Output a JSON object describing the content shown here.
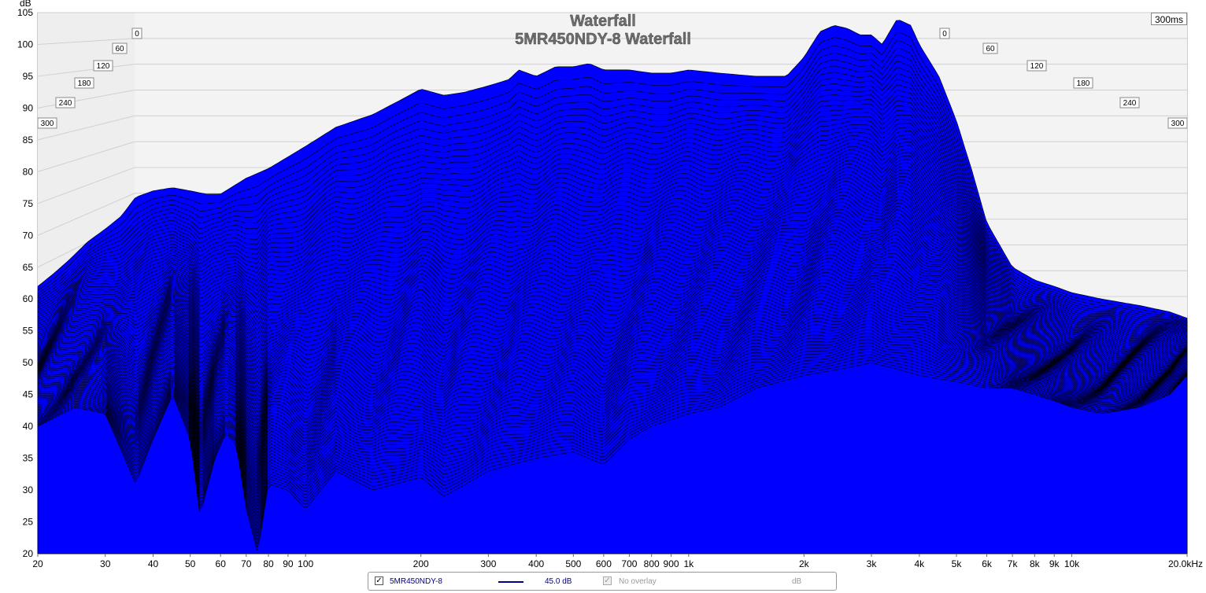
{
  "window": {
    "title": "Waterfall",
    "subtitle": "5MR450NDY-8 Waterfall",
    "time_range_label": "300ms"
  },
  "legend": {
    "series_name": "5MR450NDY-8",
    "series_checked": true,
    "series_level": "45.0 dB",
    "series_color": "#000080",
    "overlay_label": "No overlay",
    "overlay_checked": true,
    "overlay_unit": "dB"
  },
  "colors": {
    "surface": "#0000ff",
    "edge": "#000000",
    "grid": "#d0d0d0",
    "wall": "#eeeeee"
  },
  "chart_data": {
    "type": "area",
    "title": "Waterfall",
    "subtitle": "5MR450NDY-8 Waterfall",
    "ylabel": "dB",
    "xlabel": "",
    "x_scale": "log",
    "xlim": [
      20,
      20000
    ],
    "ylim": [
      20,
      105
    ],
    "y_ticks": [
      105,
      100,
      95,
      90,
      85,
      80,
      75,
      70,
      65,
      60,
      55,
      50,
      45,
      40,
      35,
      30,
      25,
      20
    ],
    "x_ticks": [
      {
        "value": 20,
        "label": "20"
      },
      {
        "value": 30,
        "label": "30"
      },
      {
        "value": 40,
        "label": "40"
      },
      {
        "value": 50,
        "label": "50"
      },
      {
        "value": 60,
        "label": "60"
      },
      {
        "value": 70,
        "label": "70"
      },
      {
        "value": 80,
        "label": "80"
      },
      {
        "value": 90,
        "label": "90"
      },
      {
        "value": 100,
        "label": "100"
      },
      {
        "value": 200,
        "label": "200"
      },
      {
        "value": 300,
        "label": "300"
      },
      {
        "value": 400,
        "label": "400"
      },
      {
        "value": 500,
        "label": "500"
      },
      {
        "value": 600,
        "label": "600"
      },
      {
        "value": 700,
        "label": "700"
      },
      {
        "value": 800,
        "label": "800"
      },
      {
        "value": 900,
        "label": "900"
      },
      {
        "value": 1000,
        "label": "1k"
      },
      {
        "value": 2000,
        "label": "2k"
      },
      {
        "value": 3000,
        "label": "3k"
      },
      {
        "value": 4000,
        "label": "4k"
      },
      {
        "value": 5000,
        "label": "5k"
      },
      {
        "value": 6000,
        "label": "6k"
      },
      {
        "value": 7000,
        "label": "7k"
      },
      {
        "value": 8000,
        "label": "8k"
      },
      {
        "value": 9000,
        "label": "9k"
      },
      {
        "value": 10000,
        "label": "10k"
      },
      {
        "value": 20000,
        "label": "20.0kHz"
      }
    ],
    "time_axis_ms": [
      "0",
      "60",
      "120",
      "180",
      "240",
      "300"
    ],
    "series": [
      {
        "name": "5MR450NDY-8",
        "time_ms": 0,
        "x": [
          20,
          22,
          24,
          27,
          30,
          33,
          36,
          40,
          45,
          50,
          55,
          60,
          70,
          80,
          100,
          120,
          150,
          180,
          200,
          230,
          260,
          300,
          340,
          360,
          400,
          450,
          500,
          550,
          600,
          650,
          700,
          800,
          900,
          1000,
          1200,
          1500,
          1800,
          2000,
          2200,
          2400,
          2600,
          2800,
          3000,
          3200,
          3500,
          3800,
          4000,
          4500,
          5000,
          5500,
          6000,
          7000,
          8000,
          9000,
          10000,
          12000,
          15000,
          18000,
          20000
        ],
        "values": [
          62,
          64,
          66,
          69,
          71,
          73,
          76,
          77,
          77.5,
          77,
          76.5,
          76.5,
          79,
          80.5,
          84,
          87,
          89,
          91.5,
          93,
          92,
          92.5,
          93.5,
          94.5,
          96,
          95,
          96.5,
          96.5,
          97,
          96,
          96,
          96,
          95.5,
          95.5,
          96,
          95.5,
          95,
          95,
          98,
          102,
          103,
          102.5,
          101.5,
          101.5,
          100,
          104,
          103,
          100,
          95,
          88,
          80,
          72,
          65,
          63,
          62,
          61,
          60,
          59,
          58,
          57
        ]
      },
      {
        "name": "5MR450NDY-8",
        "time_ms": 300,
        "x": [
          20,
          25,
          30,
          36,
          40,
          45,
          50,
          53,
          58,
          62,
          66,
          70,
          75,
          80,
          90,
          100,
          120,
          150,
          200,
          230,
          300,
          400,
          500,
          600,
          700,
          800,
          1000,
          1200,
          1500,
          2000,
          2500,
          3000,
          3500,
          4000,
          5000,
          6000,
          7000,
          8000,
          9000,
          10000,
          12000,
          15000,
          18000,
          20000
        ],
        "values": [
          40,
          43,
          42,
          31,
          38,
          45,
          38,
          26,
          35,
          39,
          37,
          27,
          20,
          31,
          30,
          27,
          33,
          30,
          32,
          29,
          33,
          35,
          36,
          34,
          38,
          40,
          42,
          43,
          46,
          48,
          49,
          50,
          49,
          48,
          47,
          46,
          46,
          45,
          44,
          43,
          42,
          43,
          45,
          48
        ]
      }
    ]
  }
}
